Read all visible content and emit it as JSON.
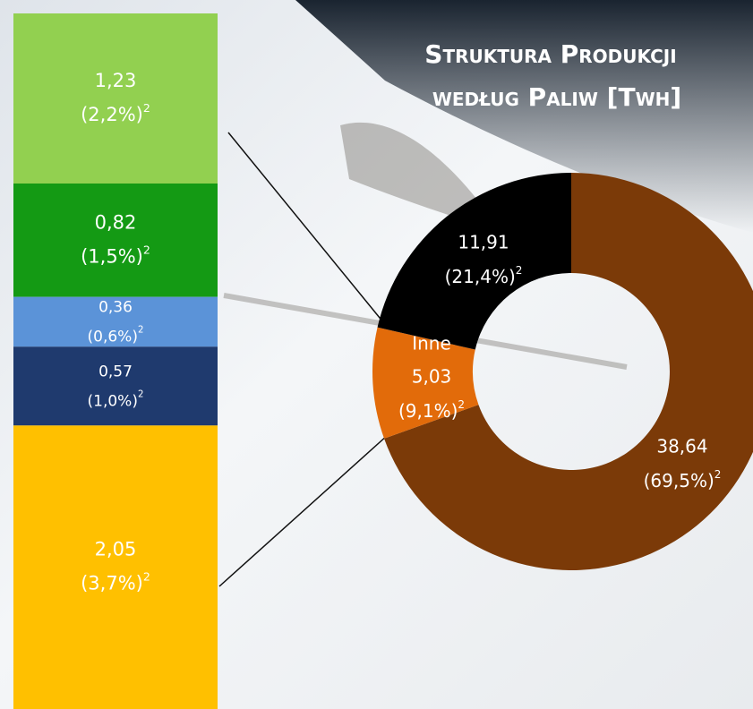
{
  "chart_data": [
    {
      "type": "donut",
      "title_lines": [
        "Struktura Produkcji",
        "według Paliw [Twh]"
      ],
      "footnote_mark": "2",
      "categories": [
        null,
        "Inne",
        null
      ],
      "values": [
        38.64,
        5.03,
        11.91
      ],
      "value_labels": [
        "38,64",
        "5,03",
        "11,91"
      ],
      "shares": [
        69.5,
        9.1,
        21.4
      ],
      "share_labels": [
        "(69,5%)",
        "(9,1%)",
        "(21,4%)"
      ],
      "colors": [
        "#7b3a08",
        "#e26b0a",
        "#000000"
      ]
    },
    {
      "type": "stacked-bar",
      "values": [
        1.23,
        0.82,
        0.36,
        0.57,
        2.05
      ],
      "value_labels": [
        "1,23",
        "0,82",
        "0,36",
        "0,57",
        "2,05"
      ],
      "shares": [
        2.2,
        1.5,
        0.6,
        1.0,
        3.7
      ],
      "share_labels": [
        "(2,2%)",
        "(1,5%)",
        "(0,6%)",
        "(1,0%)",
        "(3,7%)"
      ],
      "colors": [
        "#92d050",
        "#149a14",
        "#5b93d8",
        "#1f3a6e",
        "#ffc000"
      ]
    }
  ]
}
